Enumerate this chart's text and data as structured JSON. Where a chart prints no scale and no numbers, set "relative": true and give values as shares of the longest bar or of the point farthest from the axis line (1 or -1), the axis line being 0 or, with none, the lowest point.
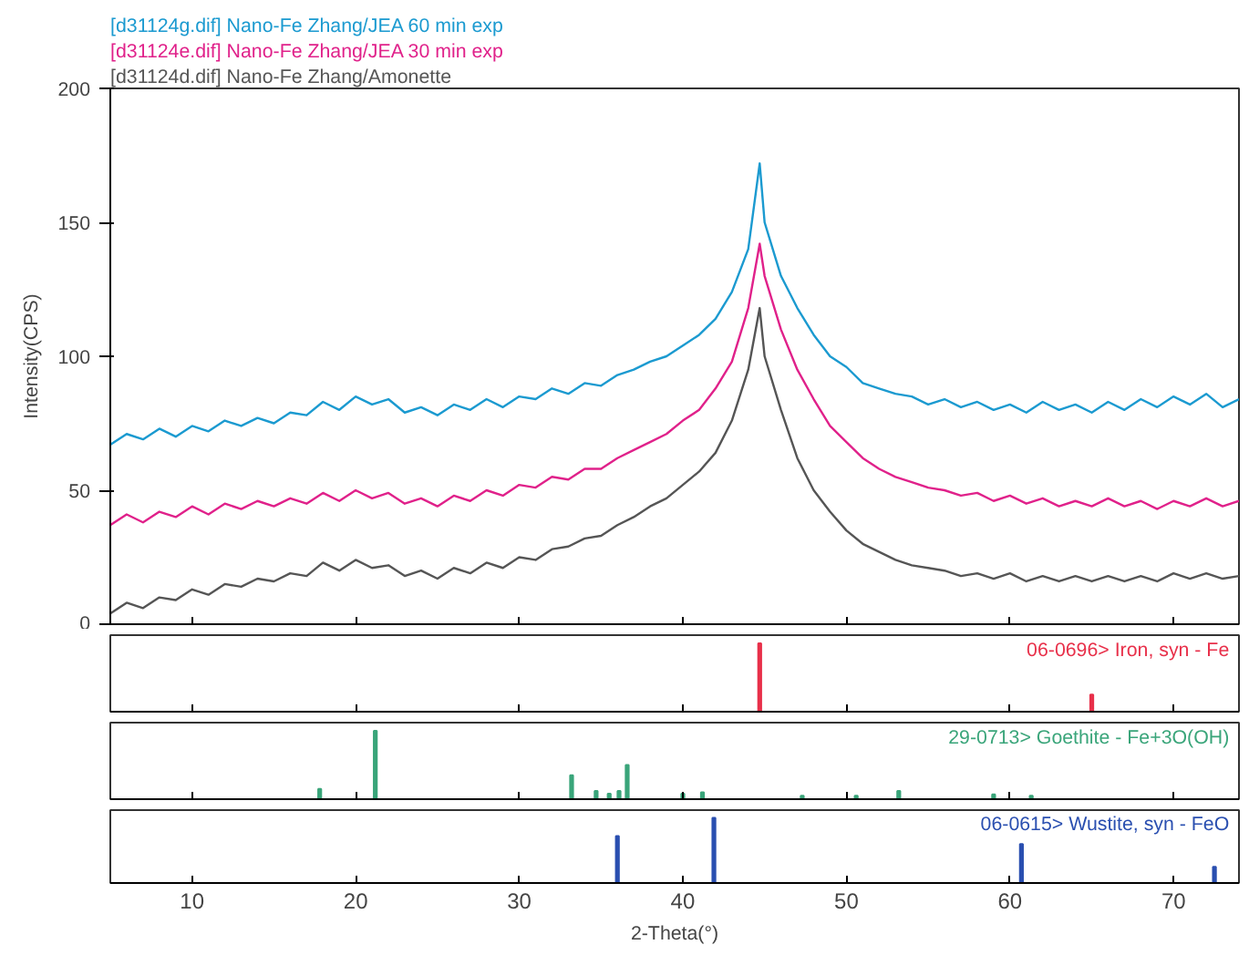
{
  "chart_data": [
    {
      "type": "line",
      "ylabel": "Intensity(CPS)",
      "xlim": [
        5,
        74
      ],
      "xticks": [
        10,
        20,
        30,
        40,
        50,
        60,
        70
      ],
      "ylim": [
        0,
        200
      ],
      "yticks": [
        0,
        50,
        100,
        150,
        200
      ],
      "tick_labels": "y",
      "legend": "top left",
      "grid": false,
      "x": [
        5,
        6,
        7,
        8,
        9,
        10,
        11,
        12,
        13,
        14,
        15,
        16,
        17,
        18,
        19,
        20,
        21,
        22,
        23,
        24,
        25,
        26,
        27,
        28,
        29,
        30,
        31,
        32,
        33,
        34,
        35,
        36,
        37,
        38,
        39,
        40,
        41,
        42,
        43,
        44,
        44.7,
        45,
        46,
        47,
        48,
        49,
        50,
        51,
        52,
        53,
        54,
        55,
        56,
        57,
        58,
        59,
        60,
        61,
        62,
        63,
        64,
        65,
        66,
        67,
        68,
        69,
        70,
        71,
        72,
        73,
        74
      ],
      "series": [
        {
          "name": "[d31124g.dif] Nano-Fe Zhang/JEA 60 min exp",
          "color": "#1b9ad0",
          "values": [
            67,
            71,
            69,
            73,
            70,
            74,
            72,
            76,
            74,
            77,
            75,
            79,
            78,
            83,
            80,
            85,
            82,
            84,
            79,
            81,
            78,
            82,
            80,
            84,
            81,
            85,
            84,
            88,
            86,
            90,
            89,
            93,
            95,
            98,
            100,
            104,
            108,
            114,
            124,
            140,
            172,
            150,
            130,
            118,
            108,
            100,
            96,
            90,
            88,
            86,
            85,
            82,
            84,
            81,
            83,
            80,
            82,
            79,
            83,
            80,
            82,
            79,
            83,
            80,
            84,
            81,
            85,
            82,
            86,
            81,
            84
          ]
        },
        {
          "name": "[d31124e.dif] Nano-Fe Zhang/JEA 30 min exp",
          "color": "#e0218a",
          "values": [
            37,
            41,
            38,
            42,
            40,
            44,
            41,
            45,
            43,
            46,
            44,
            47,
            45,
            49,
            46,
            50,
            47,
            49,
            45,
            47,
            44,
            48,
            46,
            50,
            48,
            52,
            51,
            55,
            54,
            58,
            58,
            62,
            65,
            68,
            71,
            76,
            80,
            88,
            98,
            118,
            142,
            130,
            110,
            95,
            84,
            74,
            68,
            62,
            58,
            55,
            53,
            51,
            50,
            48,
            49,
            46,
            48,
            45,
            47,
            44,
            46,
            44,
            47,
            44,
            46,
            43,
            46,
            44,
            47,
            44,
            46
          ]
        },
        {
          "name": "[d31124d.dif] Nano-Fe Zhang/Amonette",
          "color": "#555555",
          "values": [
            4,
            8,
            6,
            10,
            9,
            13,
            11,
            15,
            14,
            17,
            16,
            19,
            18,
            23,
            20,
            24,
            21,
            22,
            18,
            20,
            17,
            21,
            19,
            23,
            21,
            25,
            24,
            28,
            29,
            32,
            33,
            37,
            40,
            44,
            47,
            52,
            57,
            64,
            76,
            95,
            118,
            100,
            80,
            62,
            50,
            42,
            35,
            30,
            27,
            24,
            22,
            21,
            20,
            18,
            19,
            17,
            19,
            16,
            18,
            16,
            18,
            16,
            18,
            16,
            18,
            16,
            19,
            17,
            19,
            17,
            18
          ]
        }
      ]
    },
    {
      "type": "bar",
      "relative": true,
      "xlim": [
        5,
        74
      ],
      "xticks": [
        10,
        20,
        30,
        40,
        50,
        60,
        70
      ],
      "tick_labels": false,
      "legend": "top right",
      "series": [
        {
          "name": "06-0696> Iron, syn - Fe",
          "color": "#e8304a",
          "x": [
            44.7,
            65.0
          ],
          "values": [
            1,
            0.25
          ]
        }
      ]
    },
    {
      "type": "bar",
      "relative": true,
      "xlim": [
        5,
        74
      ],
      "xticks": [
        10,
        20,
        30,
        40,
        50,
        60,
        70
      ],
      "tick_labels": false,
      "legend": "top right",
      "series": [
        {
          "name": "29-0713> Goethite - Fe+3O(OH)",
          "color": "#3aa57a",
          "x": [
            17.8,
            21.2,
            33.2,
            34.7,
            35.5,
            36.1,
            36.6,
            40.0,
            41.2,
            47.3,
            50.6,
            53.2,
            59.0,
            61.3
          ],
          "values": [
            0.15,
            1,
            0.35,
            0.12,
            0.08,
            0.12,
            0.5,
            0.08,
            0.1,
            0.05,
            0.05,
            0.12,
            0.07,
            0.05
          ]
        }
      ]
    },
    {
      "type": "bar",
      "relative": true,
      "xlim": [
        5,
        74
      ],
      "xticks": [
        10,
        20,
        30,
        40,
        50,
        60,
        70
      ],
      "xlabel": "2-Theta(°)",
      "tick_labels": "x",
      "legend": "top right",
      "series": [
        {
          "name": "06-0615> Wustite, syn - FeO",
          "color": "#2a4fb0",
          "x": [
            36.0,
            41.9,
            60.7,
            72.5
          ],
          "values": [
            0.72,
            1,
            0.6,
            0.25
          ]
        }
      ]
    }
  ]
}
